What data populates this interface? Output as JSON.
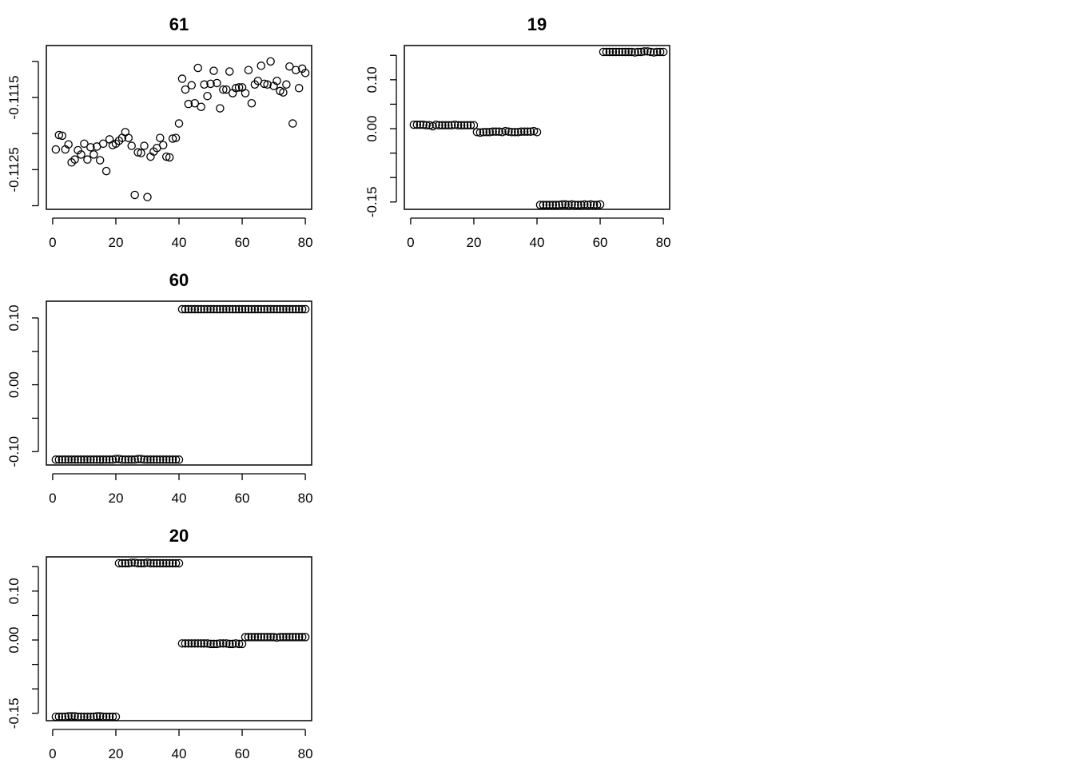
{
  "chart_data": [
    {
      "type": "scatter",
      "title": "61",
      "xlim": [
        -2,
        82
      ],
      "ylim": [
        -0.11305,
        -0.11078
      ],
      "xticks": [
        0,
        20,
        40,
        60,
        80
      ],
      "xtick_labels": [
        "0",
        "20",
        "40",
        "60",
        "80"
      ],
      "yticks": [
        -0.113,
        -0.1125,
        -0.112,
        -0.1115,
        -0.111
      ],
      "ytick_labels": [
        "",
        "-0.1125",
        "",
        "-0.1115",
        ""
      ],
      "x": [
        1,
        2,
        3,
        4,
        5,
        6,
        7,
        8,
        9,
        10,
        11,
        12,
        13,
        14,
        15,
        16,
        17,
        18,
        19,
        20,
        21,
        22,
        23,
        24,
        25,
        26,
        27,
        28,
        29,
        30,
        31,
        32,
        33,
        34,
        35,
        36,
        37,
        38,
        39,
        40,
        41,
        42,
        43,
        44,
        45,
        46,
        47,
        48,
        49,
        50,
        51,
        52,
        53,
        54,
        55,
        56,
        57,
        58,
        59,
        60,
        61,
        62,
        63,
        64,
        65,
        66,
        67,
        68,
        69,
        70,
        71,
        72,
        73,
        74,
        75,
        76,
        77,
        78,
        79,
        80
      ],
      "y": [
        -0.11222,
        -0.11202,
        -0.11203,
        -0.11222,
        -0.11215,
        -0.1124,
        -0.11236,
        -0.11223,
        -0.11229,
        -0.11214,
        -0.11236,
        -0.11219,
        -0.11229,
        -0.11218,
        -0.11237,
        -0.11214,
        -0.11252,
        -0.11208,
        -0.11216,
        -0.11214,
        -0.1121,
        -0.11206,
        -0.11198,
        -0.11206,
        -0.11217,
        -0.11285,
        -0.11226,
        -0.11227,
        -0.11217,
        -0.11288,
        -0.11232,
        -0.11225,
        -0.1122,
        -0.11206,
        -0.11216,
        -0.11232,
        -0.11233,
        -0.11207,
        -0.11206,
        -0.11186,
        -0.11124,
        -0.11139,
        -0.11159,
        -0.11133,
        -0.11158,
        -0.11109,
        -0.11163,
        -0.11132,
        -0.11148,
        -0.11131,
        -0.11113,
        -0.1113,
        -0.11165,
        -0.11139,
        -0.11139,
        -0.11114,
        -0.11144,
        -0.11137,
        -0.11136,
        -0.11136,
        -0.11144,
        -0.11112,
        -0.11158,
        -0.11132,
        -0.11127,
        -0.11106,
        -0.11131,
        -0.11132,
        -0.111,
        -0.11134,
        -0.11127,
        -0.11141,
        -0.11143,
        -0.11132,
        -0.11107,
        -0.11186,
        -0.11112,
        -0.11137,
        -0.1111,
        -0.11116
      ]
    },
    {
      "type": "scatter",
      "title": "19",
      "xlim": [
        -2,
        82
      ],
      "ylim": [
        -0.165,
        0.17
      ],
      "xticks": [
        0,
        20,
        40,
        60,
        80
      ],
      "xtick_labels": [
        "0",
        "20",
        "40",
        "60",
        "80"
      ],
      "yticks": [
        -0.15,
        -0.1,
        -0.05,
        0.0,
        0.05,
        0.1,
        0.15
      ],
      "ytick_labels": [
        "-0.15",
        "",
        "",
        "0.00",
        "",
        "0.10",
        ""
      ],
      "x": [
        1,
        2,
        3,
        4,
        5,
        6,
        7,
        8,
        9,
        10,
        11,
        12,
        13,
        14,
        15,
        16,
        17,
        18,
        19,
        20,
        21,
        22,
        23,
        24,
        25,
        26,
        27,
        28,
        29,
        30,
        31,
        32,
        33,
        34,
        35,
        36,
        37,
        38,
        39,
        40,
        41,
        42,
        43,
        44,
        45,
        46,
        47,
        48,
        49,
        50,
        51,
        52,
        53,
        54,
        55,
        56,
        57,
        58,
        59,
        60,
        61,
        62,
        63,
        64,
        65,
        66,
        67,
        68,
        69,
        70,
        71,
        72,
        73,
        74,
        75,
        76,
        77,
        78,
        79,
        80
      ],
      "y": [
        0.008,
        0.008,
        0.008,
        0.008,
        0.007,
        0.007,
        0.005,
        0.008,
        0.007,
        0.007,
        0.007,
        0.007,
        0.007,
        0.008,
        0.007,
        0.007,
        0.007,
        0.007,
        0.007,
        0.007,
        -0.007,
        -0.008,
        -0.007,
        -0.007,
        -0.007,
        -0.006,
        -0.006,
        -0.006,
        -0.007,
        -0.005,
        -0.006,
        -0.007,
        -0.007,
        -0.007,
        -0.006,
        -0.006,
        -0.006,
        -0.006,
        -0.005,
        -0.007,
        -0.156,
        -0.156,
        -0.156,
        -0.156,
        -0.156,
        -0.156,
        -0.156,
        -0.155,
        -0.155,
        -0.156,
        -0.155,
        -0.156,
        -0.156,
        -0.156,
        -0.155,
        -0.156,
        -0.155,
        -0.156,
        -0.156,
        -0.155,
        0.157,
        0.157,
        0.157,
        0.157,
        0.157,
        0.157,
        0.157,
        0.157,
        0.157,
        0.157,
        0.156,
        0.157,
        0.157,
        0.158,
        0.158,
        0.157,
        0.156,
        0.157,
        0.157,
        0.157
      ]
    },
    {
      "type": "scatter",
      "title": "60",
      "xlim": [
        -2,
        82
      ],
      "ylim": [
        -0.12,
        0.125
      ],
      "xticks": [
        0,
        20,
        40,
        60,
        80
      ],
      "xtick_labels": [
        "0",
        "20",
        "40",
        "60",
        "80"
      ],
      "yticks": [
        -0.1,
        -0.05,
        0.0,
        0.05,
        0.1
      ],
      "ytick_labels": [
        "-0.10",
        "",
        "0.00",
        "",
        "0.10"
      ],
      "x": [
        1,
        2,
        3,
        4,
        5,
        6,
        7,
        8,
        9,
        10,
        11,
        12,
        13,
        14,
        15,
        16,
        17,
        18,
        19,
        20,
        21,
        22,
        23,
        24,
        25,
        26,
        27,
        28,
        29,
        30,
        31,
        32,
        33,
        34,
        35,
        36,
        37,
        38,
        39,
        40,
        41,
        42,
        43,
        44,
        45,
        46,
        47,
        48,
        49,
        50,
        51,
        52,
        53,
        54,
        55,
        56,
        57,
        58,
        59,
        60,
        61,
        62,
        63,
        64,
        65,
        66,
        67,
        68,
        69,
        70,
        71,
        72,
        73,
        74,
        75,
        76,
        77,
        78,
        79,
        80
      ],
      "y": [
        -0.112,
        -0.112,
        -0.112,
        -0.112,
        -0.112,
        -0.112,
        -0.112,
        -0.112,
        -0.112,
        -0.112,
        -0.112,
        -0.112,
        -0.112,
        -0.112,
        -0.112,
        -0.112,
        -0.112,
        -0.112,
        -0.112,
        -0.111,
        -0.111,
        -0.112,
        -0.112,
        -0.112,
        -0.112,
        -0.112,
        -0.111,
        -0.111,
        -0.112,
        -0.112,
        -0.112,
        -0.112,
        -0.112,
        -0.112,
        -0.112,
        -0.112,
        -0.112,
        -0.112,
        -0.112,
        -0.112,
        0.113,
        0.113,
        0.113,
        0.113,
        0.113,
        0.113,
        0.113,
        0.113,
        0.113,
        0.113,
        0.113,
        0.113,
        0.113,
        0.113,
        0.113,
        0.113,
        0.113,
        0.113,
        0.113,
        0.113,
        0.113,
        0.113,
        0.113,
        0.113,
        0.113,
        0.113,
        0.113,
        0.113,
        0.113,
        0.113,
        0.113,
        0.113,
        0.113,
        0.113,
        0.113,
        0.113,
        0.113,
        0.113,
        0.113,
        0.113
      ]
    },
    {
      "type": "scatter",
      "title": "20",
      "xlim": [
        -2,
        82
      ],
      "ylim": [
        -0.165,
        0.17
      ],
      "xticks": [
        0,
        20,
        40,
        60,
        80
      ],
      "xtick_labels": [
        "0",
        "20",
        "40",
        "60",
        "80"
      ],
      "yticks": [
        -0.15,
        -0.1,
        -0.05,
        0.0,
        0.05,
        0.1,
        0.15
      ],
      "ytick_labels": [
        "-0.15",
        "",
        "",
        "0.00",
        "",
        "0.10",
        ""
      ],
      "x": [
        1,
        2,
        3,
        4,
        5,
        6,
        7,
        8,
        9,
        10,
        11,
        12,
        13,
        14,
        15,
        16,
        17,
        18,
        19,
        20,
        21,
        22,
        23,
        24,
        25,
        26,
        27,
        28,
        29,
        30,
        31,
        32,
        33,
        34,
        35,
        36,
        37,
        38,
        39,
        40,
        41,
        42,
        43,
        44,
        45,
        46,
        47,
        48,
        49,
        50,
        51,
        52,
        53,
        54,
        55,
        56,
        57,
        58,
        59,
        60,
        61,
        62,
        63,
        64,
        65,
        66,
        67,
        68,
        69,
        70,
        71,
        72,
        73,
        74,
        75,
        76,
        77,
        78,
        79,
        80
      ],
      "y": [
        -0.157,
        -0.157,
        -0.157,
        -0.157,
        -0.156,
        -0.156,
        -0.156,
        -0.157,
        -0.157,
        -0.157,
        -0.157,
        -0.157,
        -0.157,
        -0.156,
        -0.156,
        -0.157,
        -0.157,
        -0.157,
        -0.157,
        -0.157,
        0.157,
        0.157,
        0.157,
        0.157,
        0.158,
        0.158,
        0.157,
        0.157,
        0.157,
        0.158,
        0.157,
        0.157,
        0.157,
        0.157,
        0.157,
        0.157,
        0.157,
        0.157,
        0.157,
        0.157,
        -0.007,
        -0.007,
        -0.007,
        -0.007,
        -0.007,
        -0.007,
        -0.007,
        -0.007,
        -0.007,
        -0.008,
        -0.008,
        -0.008,
        -0.007,
        -0.007,
        -0.007,
        -0.008,
        -0.008,
        -0.007,
        -0.008,
        -0.008,
        0.006,
        0.006,
        0.006,
        0.006,
        0.006,
        0.006,
        0.006,
        0.006,
        0.006,
        0.006,
        0.005,
        0.006,
        0.006,
        0.006,
        0.006,
        0.006,
        0.006,
        0.006,
        0.006,
        0.006
      ]
    }
  ]
}
